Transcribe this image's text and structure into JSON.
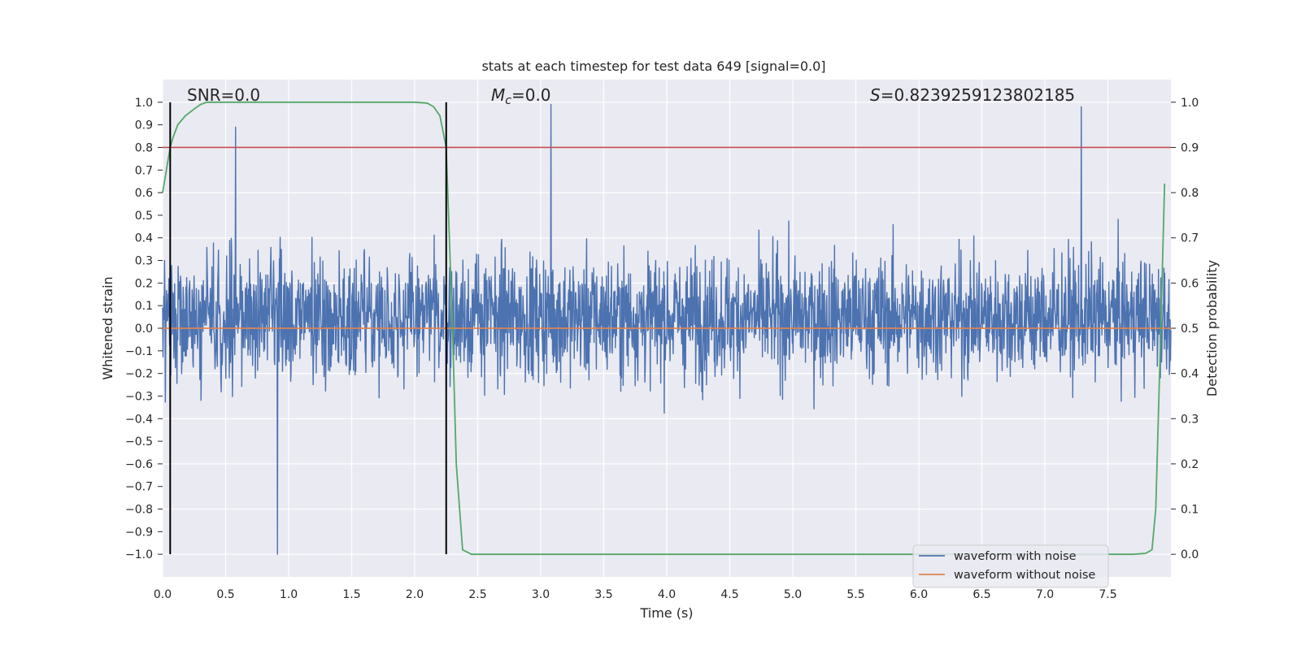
{
  "chart_data": {
    "type": "line",
    "title": "stats at each timestep for test data 649 [signal=0.0]",
    "xlabel": "Time (s)",
    "ylabel": "Whitened strain",
    "y2label": "Detection probability",
    "xlim": [
      0.0,
      8.0
    ],
    "ylim": [
      -1.1,
      1.1
    ],
    "y2lim": [
      -0.05,
      1.05
    ],
    "x_ticks": [
      "0.0",
      "0.5",
      "1.0",
      "1.5",
      "2.0",
      "2.5",
      "3.0",
      "3.5",
      "4.0",
      "4.5",
      "5.0",
      "5.5",
      "6.0",
      "6.5",
      "7.0",
      "7.5"
    ],
    "y_ticks": [
      "1.0",
      "0.9",
      "0.8",
      "0.7",
      "0.6",
      "0.5",
      "0.4",
      "0.3",
      "0.2",
      "0.1",
      "0.0",
      "−0.1",
      "−0.2",
      "−0.3",
      "−0.4",
      "−0.5",
      "−0.6",
      "−0.7",
      "−0.8",
      "−0.9",
      "−1.0"
    ],
    "y2_ticks": [
      "1.0",
      "0.9",
      "0.8",
      "0.7",
      "0.6",
      "0.5",
      "0.4",
      "0.3",
      "0.2",
      "0.1",
      "0.0"
    ],
    "grid": true,
    "legend_position": "lower-right",
    "annotations": {
      "snr": "SNR=0.0",
      "mc_symbol": "M",
      "mc_sub": "c",
      "mc_value": "=0.0",
      "s_symbol": "S",
      "s_value": "=0.8239259123802185"
    },
    "vlines_x": [
      0.06,
      2.25
    ],
    "threshold_y": 0.8,
    "series": [
      {
        "name": "waveform with noise",
        "color": "#4c72b0",
        "kind": "noise",
        "typical_amplitude": [
          -0.5,
          0.6
        ],
        "extreme_values": [
          [
            0.91,
            -1.0
          ],
          [
            3.08,
            0.99
          ],
          [
            7.29,
            0.98
          ],
          [
            0.58,
            0.89
          ]
        ]
      },
      {
        "name": "waveform without noise",
        "color": "#dd8452",
        "x": [
          0.0,
          8.0
        ],
        "y": [
          0.0,
          0.0
        ]
      },
      {
        "name": "",
        "color": "#55a868",
        "axis": "right",
        "x": [
          0.0,
          0.03,
          0.06,
          0.08,
          0.12,
          0.18,
          0.25,
          0.3,
          0.35,
          0.5,
          1.0,
          1.5,
          2.0,
          2.1,
          2.15,
          2.2,
          2.25,
          2.3,
          2.33,
          2.38,
          2.45,
          3.0,
          5.0,
          7.0,
          7.7,
          7.8,
          7.85,
          7.88,
          7.92,
          7.95
        ],
        "y": [
          0.8,
          0.85,
          0.9,
          0.92,
          0.95,
          0.97,
          0.985,
          0.995,
          1.0,
          1.0,
          1.0,
          1.0,
          1.0,
          0.998,
          0.99,
          0.97,
          0.9,
          0.5,
          0.2,
          0.01,
          0.0,
          0.0,
          0.0,
          0.0,
          0.0,
          0.002,
          0.01,
          0.1,
          0.5,
          0.82
        ]
      },
      {
        "name": "",
        "color": "#c44e52",
        "kind": "threshold",
        "x": [
          0.0,
          8.0
        ],
        "y": [
          0.8,
          0.8
        ]
      }
    ]
  }
}
